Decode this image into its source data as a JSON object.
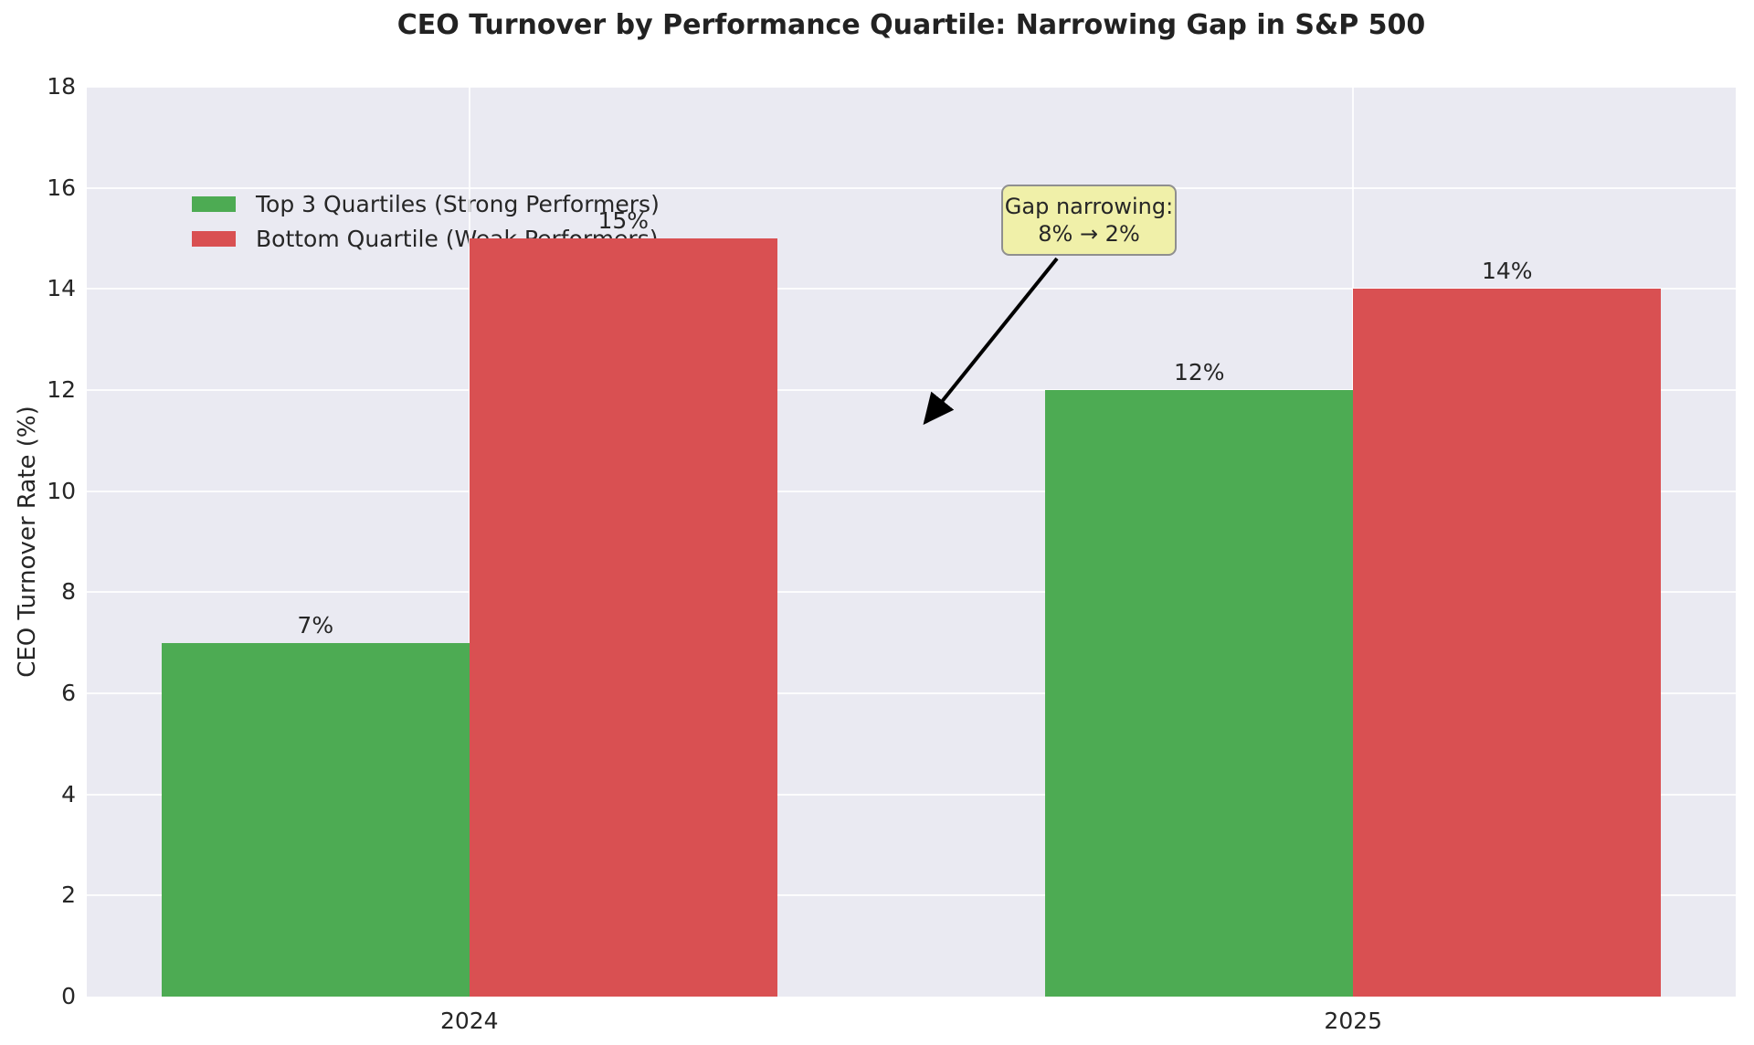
{
  "chart_data": {
    "type": "bar",
    "title": "CEO Turnover by Performance Quartile: Narrowing Gap in S&P 500",
    "ylabel": "CEO Turnover Rate (%)",
    "ylim": [
      0,
      18
    ],
    "yticks": [
      0,
      2,
      4,
      6,
      8,
      10,
      12,
      14,
      16,
      18
    ],
    "categories": [
      "2024",
      "2025"
    ],
    "series": [
      {
        "name": "Top 3 Quartiles (Strong Performers)",
        "color": "#4dab53",
        "values": [
          7,
          12
        ],
        "labels": [
          "7%",
          "12%"
        ]
      },
      {
        "name": "Bottom Quartile (Weak Performers)",
        "color": "#d95052",
        "values": [
          15,
          14
        ],
        "labels": [
          "15%",
          "14%"
        ]
      }
    ],
    "grid": true,
    "legend_position": "upper left",
    "annotation": {
      "line1": "Gap narrowing:",
      "line2": "8% → 2%"
    },
    "colors": {
      "plot_bg": "#eaeaf2",
      "grid": "#ffffff",
      "text": "#262626",
      "annotation_bg": "#f0f0a9",
      "annotation_border": "#8f8f8f",
      "arrow": "#000000"
    }
  }
}
